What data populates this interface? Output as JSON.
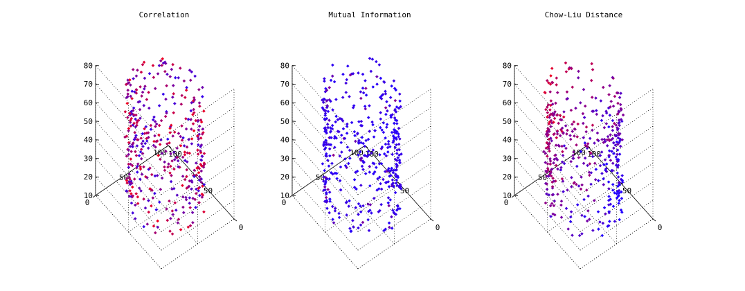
{
  "chart_data": [
    {
      "type": "scatter",
      "title": "Correlation",
      "xlabel": "",
      "ylabel": "",
      "zlabel": "",
      "xlim": [
        0,
        100
      ],
      "ylim": [
        0,
        100
      ],
      "zlim": [
        10,
        80
      ],
      "x_ticks": [
        "0",
        "50",
        "100"
      ],
      "y_ticks": [
        "0",
        "50",
        "100"
      ],
      "z_ticks": [
        "10",
        "20",
        "30",
        "40",
        "50",
        "60",
        "70",
        "80"
      ],
      "grid": true,
      "projection": "3d",
      "point_shape": "cylinder",
      "cylinder": {
        "center_x": 50,
        "center_y": 50,
        "radius": 40,
        "z_range": [
          12,
          73
        ]
      },
      "color_scale": {
        "low": "#2200ff",
        "high": "#ee0022"
      },
      "color_pattern": "mixed",
      "num_points": 420
    },
    {
      "type": "scatter",
      "title": "Mutual Information",
      "xlabel": "",
      "ylabel": "",
      "zlabel": "",
      "xlim": [
        0,
        100
      ],
      "ylim": [
        0,
        100
      ],
      "zlim": [
        10,
        80
      ],
      "x_ticks": [
        "0",
        "50",
        "100"
      ],
      "y_ticks": [
        "0",
        "50",
        "100"
      ],
      "z_ticks": [
        "10",
        "20",
        "30",
        "40",
        "50",
        "60",
        "70",
        "80"
      ],
      "grid": true,
      "projection": "3d",
      "point_shape": "cylinder",
      "cylinder": {
        "center_x": 50,
        "center_y": 50,
        "radius": 40,
        "z_range": [
          12,
          73
        ]
      },
      "color_scale": {
        "low": "#2200ff",
        "high": "#ee0022"
      },
      "color_pattern": "mostly-low",
      "num_points": 420
    },
    {
      "type": "scatter",
      "title": "Chow-Liu Distance",
      "xlabel": "",
      "ylabel": "",
      "zlabel": "",
      "xlim": [
        0,
        100
      ],
      "ylim": [
        0,
        100
      ],
      "zlim": [
        10,
        80
      ],
      "x_ticks": [
        "0",
        "50",
        "100"
      ],
      "y_ticks": [
        "0",
        "50",
        "100"
      ],
      "z_ticks": [
        "10",
        "20",
        "30",
        "40",
        "50",
        "60",
        "70",
        "80"
      ],
      "grid": true,
      "projection": "3d",
      "point_shape": "cylinder",
      "cylinder": {
        "center_x": 50,
        "center_y": 50,
        "radius": 40,
        "z_range": [
          12,
          73
        ]
      },
      "color_scale": {
        "low": "#2200ff",
        "high": "#ee0022"
      },
      "color_pattern": "high-top-left",
      "num_points": 420
    }
  ]
}
